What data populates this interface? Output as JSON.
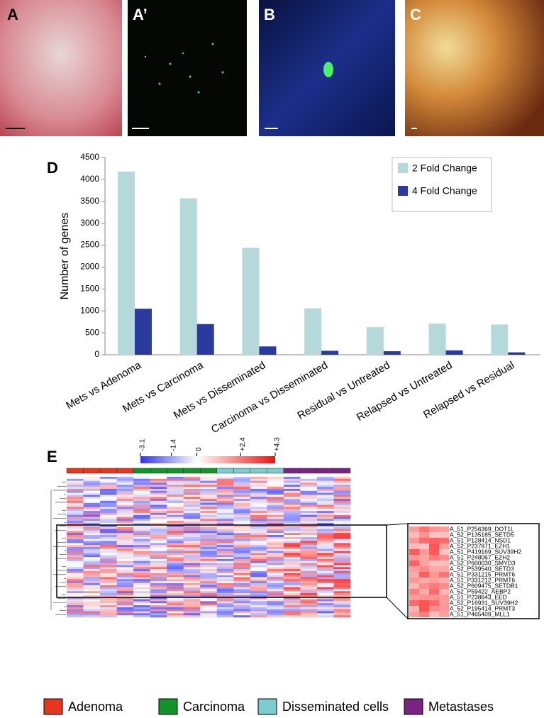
{
  "panels": {
    "a": "A",
    "a_prime": "A’",
    "b": "B",
    "c": "C",
    "d": "D",
    "e": "E"
  },
  "chart_data": {
    "type": "bar",
    "ylabel": "Number of genes",
    "categories": [
      "Mets vs Adenoma",
      "Mets vs Carcinoma",
      "Mets vs Disseminated",
      "Carcinoma vs Disseminated",
      "Residual vs Untreated",
      "Relapsed vs Untreated",
      "Relapsed vs Residual"
    ],
    "series": [
      {
        "name": "2 Fold Change",
        "color": "#b5d8db",
        "values": [
          4180,
          3570,
          2440,
          1060,
          630,
          710,
          690
        ]
      },
      {
        "name": "4 Fold Change",
        "color": "#2a3a9e",
        "values": [
          1050,
          700,
          190,
          90,
          80,
          100,
          55
        ]
      }
    ],
    "ylim": [
      0,
      4500
    ],
    "yticks": [
      0,
      500,
      1000,
      1500,
      2000,
      2500,
      3000,
      3500,
      4000,
      4500
    ],
    "legend": "top-right",
    "grid": false
  },
  "heatmap": {
    "color_scale": {
      "lim": [
        -3.1,
        4.3
      ],
      "ticks": [
        {
          "value": -3.1,
          "label": "-3.1"
        },
        {
          "value": -1.4,
          "label": "-1.4"
        },
        {
          "value": 0,
          "label": "0"
        },
        {
          "value": 2.4,
          "label": "+2.4"
        },
        {
          "value": 4.3,
          "label": "+4.3"
        }
      ]
    },
    "groups": [
      {
        "name": "Adenoma",
        "color": "#e8351e"
      },
      {
        "name": "Carcinoma",
        "color": "#11952a"
      },
      {
        "name": "Disseminated cells",
        "color": "#7ccbcf"
      },
      {
        "name": "Metastases",
        "color": "#7a2383"
      }
    ],
    "zoom_genes": [
      "A_51_P256369_DOT1L",
      "A_52_P135185_SETD5",
      "A_51_P128414_NSD1",
      "A_52_P237871_EZH1",
      "A_51_P419169_SUV39H2",
      "A_51_P248067_EZH2",
      "A_52_P600030_SMYD3",
      "A_52_P539540_SETD3",
      "A_51_P331215_PRMT6",
      "A_51_P331212_PRMT6",
      "A_52_P609475_SETDB1",
      "A_52_P59422_AEBP2",
      "A_51_P238643_EED",
      "A_52_P16931_SUV39H2",
      "A_52_P195414_PRMT3",
      "A_51_P465409_MLL1"
    ]
  }
}
